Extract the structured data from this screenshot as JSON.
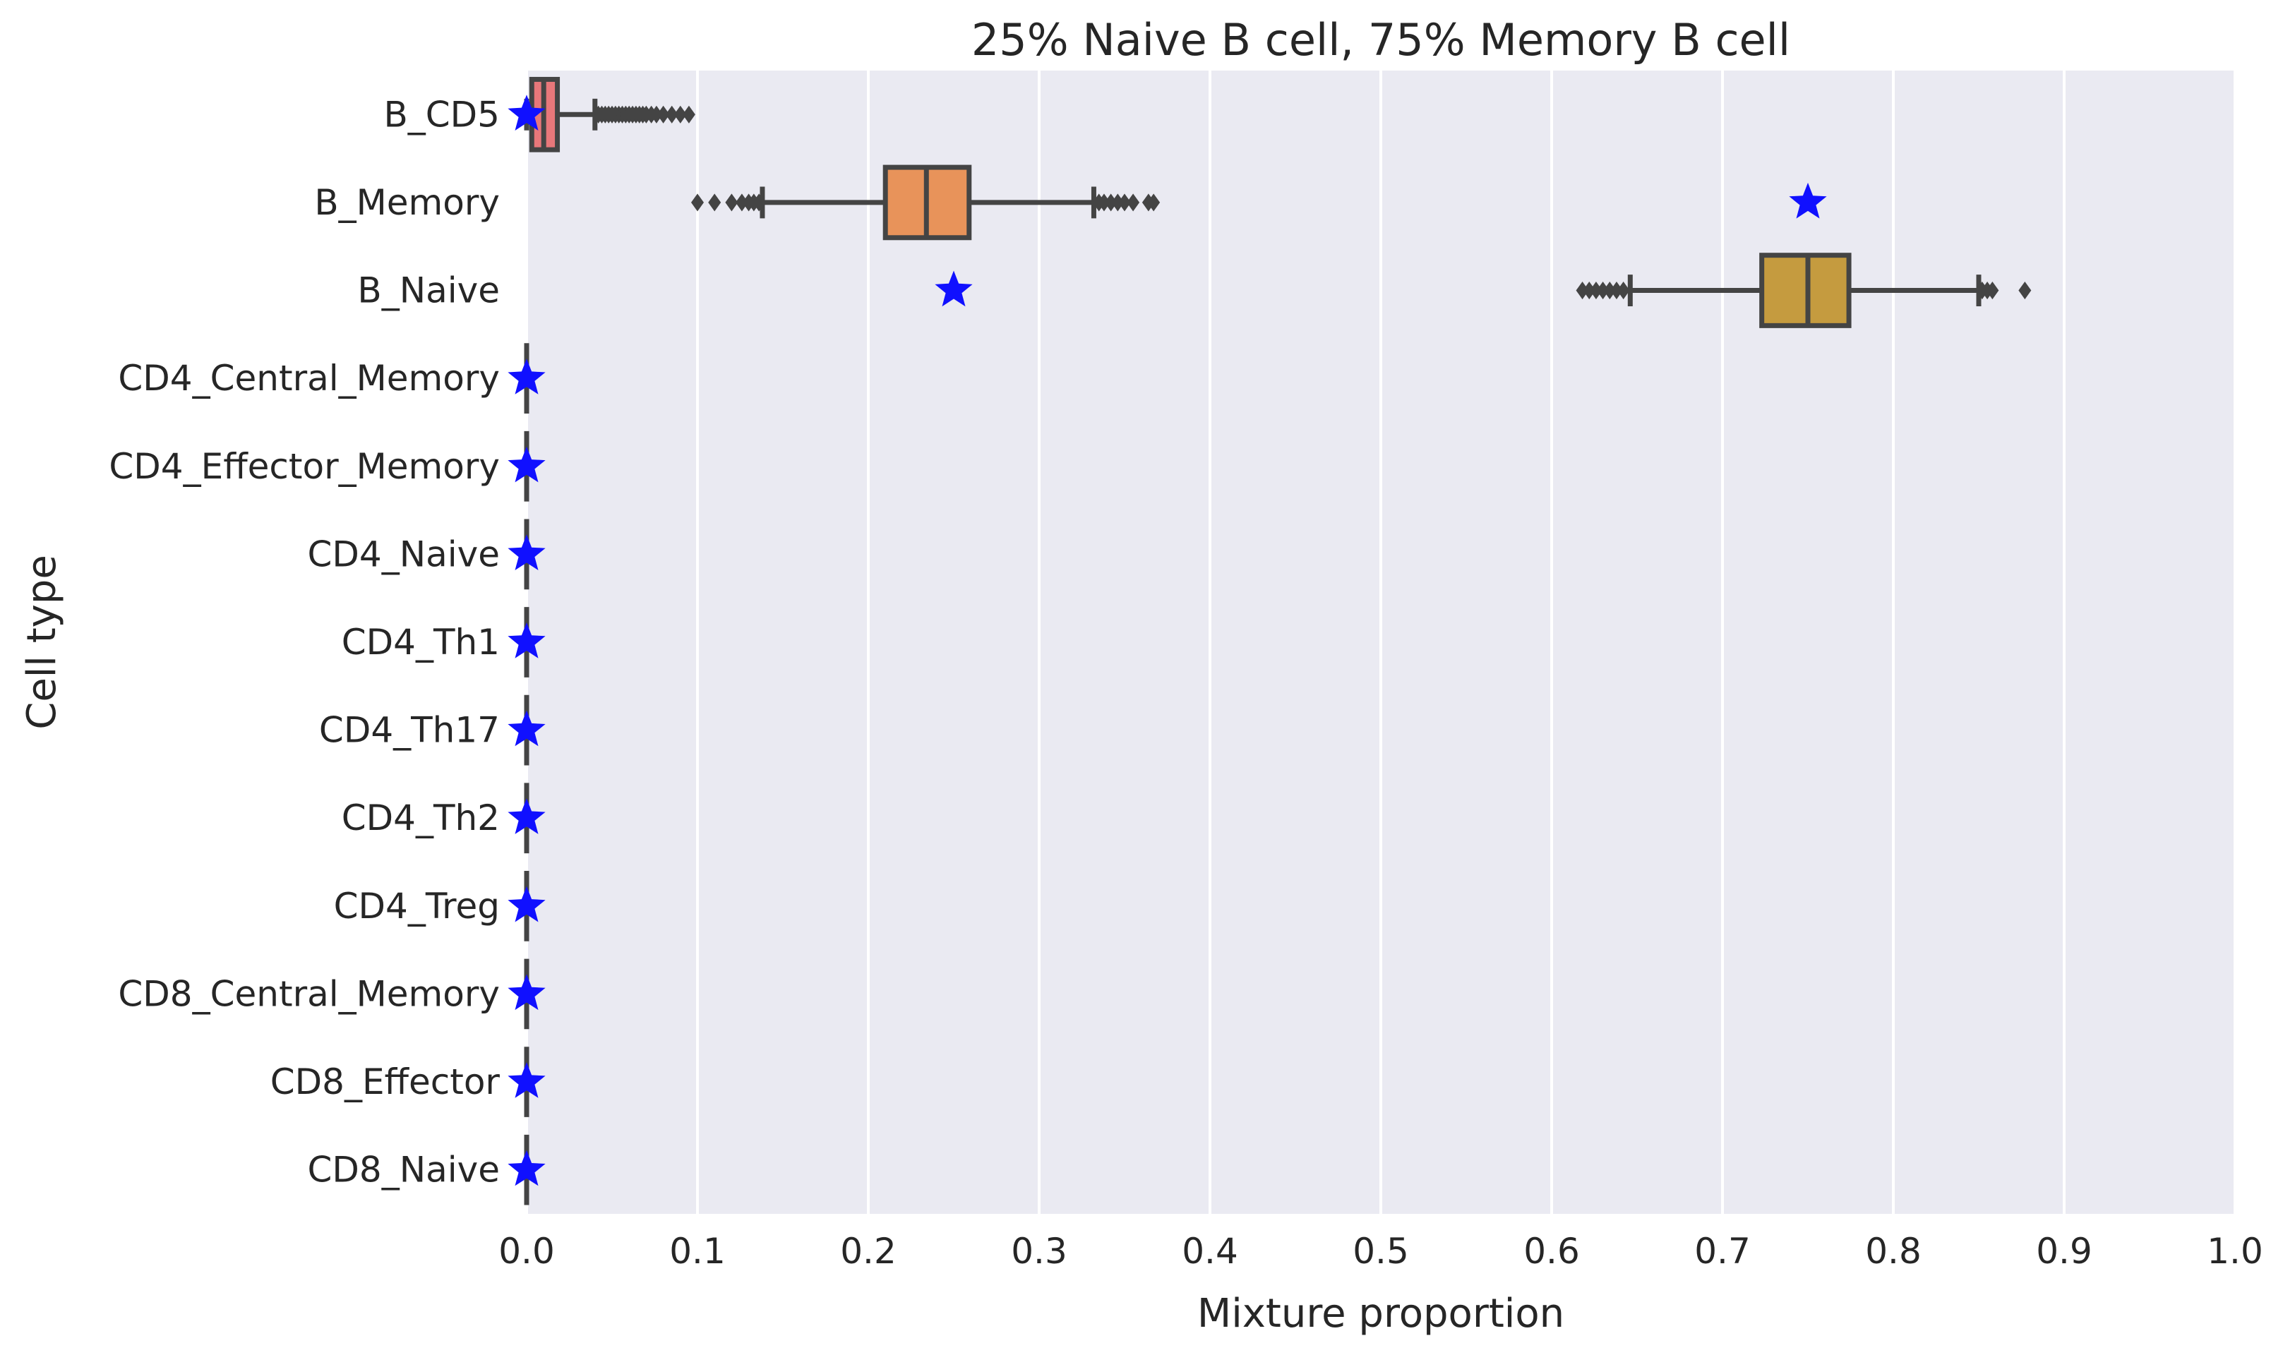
{
  "chart_data": {
    "type": "boxplot",
    "orientation": "horizontal",
    "title": "25% Naive B cell, 75% Memory B cell",
    "xlabel": "Mixture proportion",
    "ylabel": "Cell type",
    "xlim": [
      0.0,
      1.0
    ],
    "xticks": [
      "0.0",
      "0.1",
      "0.2",
      "0.3",
      "0.4",
      "0.5",
      "0.6",
      "0.7",
      "0.8",
      "0.9",
      "1.0"
    ],
    "grid": true,
    "background": "#eaeaf2",
    "marker_color": "#1010ff",
    "marker_label": "true proportion (star)",
    "categories": [
      "B_CD5",
      "B_Memory",
      "B_Naive",
      "CD4_Central_Memory",
      "CD4_Effector_Memory",
      "CD4_Naive",
      "CD4_Th1",
      "CD4_Th17",
      "CD4_Th2",
      "CD4_Treg",
      "CD8_Central_Memory",
      "CD8_Effector",
      "CD8_Naive"
    ],
    "boxes": [
      {
        "category": "B_CD5",
        "color": "#e8777a",
        "whislo": 0.0,
        "q1": 0.003,
        "med": 0.01,
        "q3": 0.018,
        "whishi": 0.04,
        "fliers": [
          0.042,
          0.044,
          0.046,
          0.048,
          0.05,
          0.052,
          0.054,
          0.056,
          0.058,
          0.06,
          0.062,
          0.064,
          0.066,
          0.068,
          0.07,
          0.073,
          0.076,
          0.08,
          0.085,
          0.09,
          0.095
        ]
      },
      {
        "category": "B_Memory",
        "color": "#e8935a",
        "whislo": 0.138,
        "q1": 0.21,
        "med": 0.234,
        "q3": 0.259,
        "whishi": 0.332,
        "fliers": [
          0.1,
          0.11,
          0.12,
          0.126,
          0.13,
          0.133,
          0.136,
          0.335,
          0.338,
          0.342,
          0.346,
          0.35,
          0.355,
          0.364,
          0.367
        ]
      },
      {
        "category": "B_Naive",
        "color": "#c59b3f",
        "whislo": 0.646,
        "q1": 0.723,
        "med": 0.75,
        "q3": 0.774,
        "whishi": 0.85,
        "fliers": [
          0.618,
          0.622,
          0.626,
          0.63,
          0.634,
          0.638,
          0.642,
          0.852,
          0.855,
          0.858,
          0.877
        ]
      },
      {
        "category": "CD4_Central_Memory",
        "color": "#9aa53c",
        "whislo": 0.0,
        "q1": 0.0,
        "med": 0.0,
        "q3": 0.0,
        "whishi": 0.0,
        "fliers": []
      },
      {
        "category": "CD4_Effector_Memory",
        "color": "#6fae3f",
        "whislo": 0.0,
        "q1": 0.0,
        "med": 0.0,
        "q3": 0.0,
        "whishi": 0.0,
        "fliers": []
      },
      {
        "category": "CD4_Naive",
        "color": "#4cb286",
        "whislo": 0.0,
        "q1": 0.0,
        "med": 0.0,
        "q3": 0.0,
        "whishi": 0.0,
        "fliers": []
      },
      {
        "category": "CD4_Th1",
        "color": "#4cb1a8",
        "whislo": 0.0,
        "q1": 0.0,
        "med": 0.0,
        "q3": 0.0,
        "whishi": 0.0,
        "fliers": []
      },
      {
        "category": "CD4_Th17",
        "color": "#4fb0c6",
        "whislo": 0.0,
        "q1": 0.0,
        "med": 0.0,
        "q3": 0.0,
        "whishi": 0.0,
        "fliers": []
      },
      {
        "category": "CD4_Th2",
        "color": "#55a8e2",
        "whislo": 0.0,
        "q1": 0.0,
        "med": 0.0,
        "q3": 0.0,
        "whishi": 0.0,
        "fliers": []
      },
      {
        "category": "CD4_Treg",
        "color": "#9c96e8",
        "whislo": 0.0,
        "q1": 0.0,
        "med": 0.0,
        "q3": 0.0,
        "whishi": 0.0,
        "fliers": []
      },
      {
        "category": "CD8_Central_Memory",
        "color": "#cf8ae8",
        "whislo": 0.0,
        "q1": 0.0,
        "med": 0.0,
        "q3": 0.0,
        "whishi": 0.0,
        "fliers": []
      },
      {
        "category": "CD8_Effector",
        "color": "#e87fd0",
        "whislo": 0.0,
        "q1": 0.0,
        "med": 0.0,
        "q3": 0.0,
        "whishi": 0.0,
        "fliers": []
      },
      {
        "category": "CD8_Naive",
        "color": "#e87ba8",
        "whislo": 0.0,
        "q1": 0.0,
        "med": 0.0,
        "q3": 0.0,
        "whishi": 0.0,
        "fliers": []
      }
    ],
    "true_values": [
      0.0,
      0.75,
      0.25,
      0.0,
      0.0,
      0.0,
      0.0,
      0.0,
      0.0,
      0.0,
      0.0,
      0.0,
      0.0
    ]
  }
}
